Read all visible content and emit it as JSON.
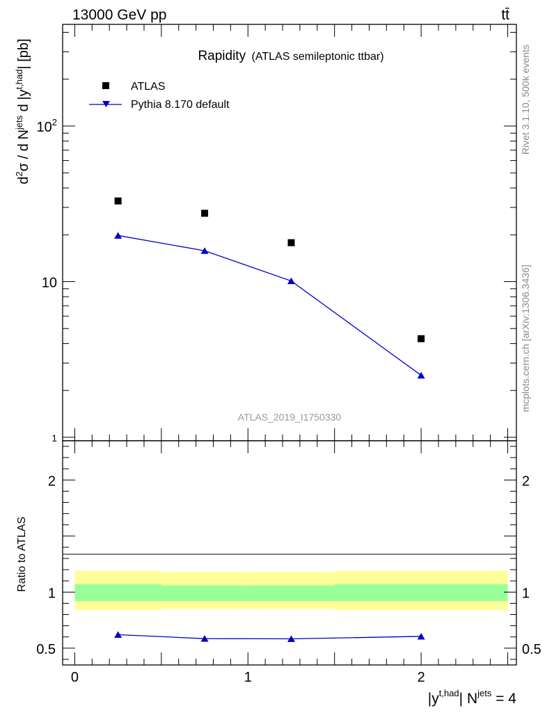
{
  "header": {
    "energy_label": "13000 GeV pp",
    "process_label": "tt̄"
  },
  "side": {
    "rivet_label": "Rivet 3.1.10,  500k events",
    "source_label": "mcplots.cern.ch [arXiv:1306.3436]"
  },
  "chart_data": [
    {
      "type": "scatter",
      "panel": "main",
      "title": "Rapidity",
      "subtitle": "(ATLAS semileptonic ttbar)",
      "analysis_label": "ATLAS_2019_I1750330",
      "ylabel": "d²σ / d N^jets d |y^t,had| [pb]",
      "yscale": "log",
      "ylim": [
        0.95,
        450
      ],
      "xlim": [
        -0.07,
        2.55
      ],
      "y_ticks": [
        {
          "value": 1,
          "label": "1"
        },
        {
          "value": 10,
          "label": "10"
        },
        {
          "value": 100,
          "label": "10²"
        }
      ],
      "legend": {
        "placement": "top-left",
        "entries": [
          "ATLAS",
          "Pythia 8.170 default"
        ]
      },
      "series": [
        {
          "name": "ATLAS",
          "marker": "square",
          "color": "#000000",
          "x": [
            0.25,
            0.75,
            1.25,
            2.0
          ],
          "y": [
            33.0,
            27.5,
            17.8,
            4.3
          ]
        },
        {
          "name": "Pythia 8.170 default",
          "marker": "triangle",
          "color": "#0000cc",
          "x": [
            0.25,
            0.75,
            1.25,
            2.0
          ],
          "y": [
            19.8,
            15.8,
            10.1,
            2.5
          ]
        }
      ]
    },
    {
      "type": "line",
      "panel": "ratio",
      "ylabel": "Ratio to ATLAS",
      "xlabel": "|y^t,had| N^jets = 4",
      "ylim": [
        0.35,
        2.35
      ],
      "xlim": [
        -0.07,
        2.55
      ],
      "x_ticks": [
        {
          "value": 0,
          "label": "0"
        },
        {
          "value": 1,
          "label": "1"
        },
        {
          "value": 2,
          "label": "2"
        }
      ],
      "y_ticks": [
        {
          "value": 0.5,
          "label": "0.5"
        },
        {
          "value": 1,
          "label": "1"
        },
        {
          "value": 2,
          "label": "2"
        }
      ],
      "bands": [
        {
          "name": "total uncertainty",
          "color": "#ffff99",
          "x": [
            [
              0.0,
              0.5
            ],
            [
              0.5,
              1.0
            ],
            [
              1.0,
              1.5
            ],
            [
              1.5,
              2.5
            ]
          ],
          "low": [
            0.84,
            0.85,
            0.85,
            0.84
          ],
          "high": [
            1.19,
            1.18,
            1.18,
            1.19
          ]
        },
        {
          "name": "stat uncertainty",
          "color": "#99ff99",
          "x": [
            [
              0.0,
              0.5
            ],
            [
              0.5,
              1.0
            ],
            [
              1.0,
              1.5
            ],
            [
              1.5,
              2.5
            ]
          ],
          "low": [
            0.92,
            0.92,
            0.92,
            0.92
          ],
          "high": [
            1.07,
            1.06,
            1.06,
            1.07
          ]
        }
      ],
      "series": [
        {
          "name": "Pythia 8.170 default / ATLAS",
          "marker": "triangle",
          "color": "#0000cc",
          "x": [
            0.25,
            0.75,
            1.25,
            2.0
          ],
          "y": [
            0.62,
            0.585,
            0.583,
            0.605
          ]
        }
      ]
    }
  ]
}
